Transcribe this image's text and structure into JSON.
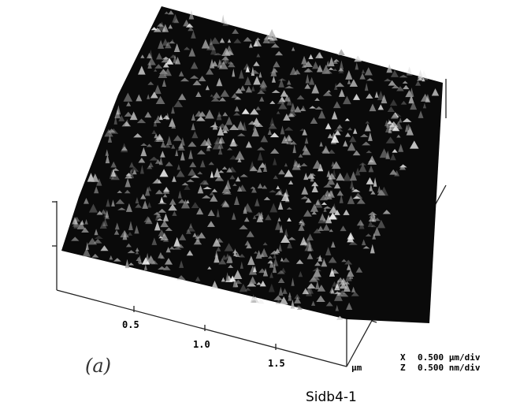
{
  "axis": {
    "ticks": [
      "0.5",
      "1.0",
      "1.5"
    ],
    "unit": "µm"
  },
  "scale": [
    {
      "axis": "X",
      "value": "0.500 µm/div"
    },
    {
      "axis": "Z",
      "value": "0.500 nm/div"
    }
  ],
  "caption": "Sidb4-1",
  "panel_label": "(a)"
}
